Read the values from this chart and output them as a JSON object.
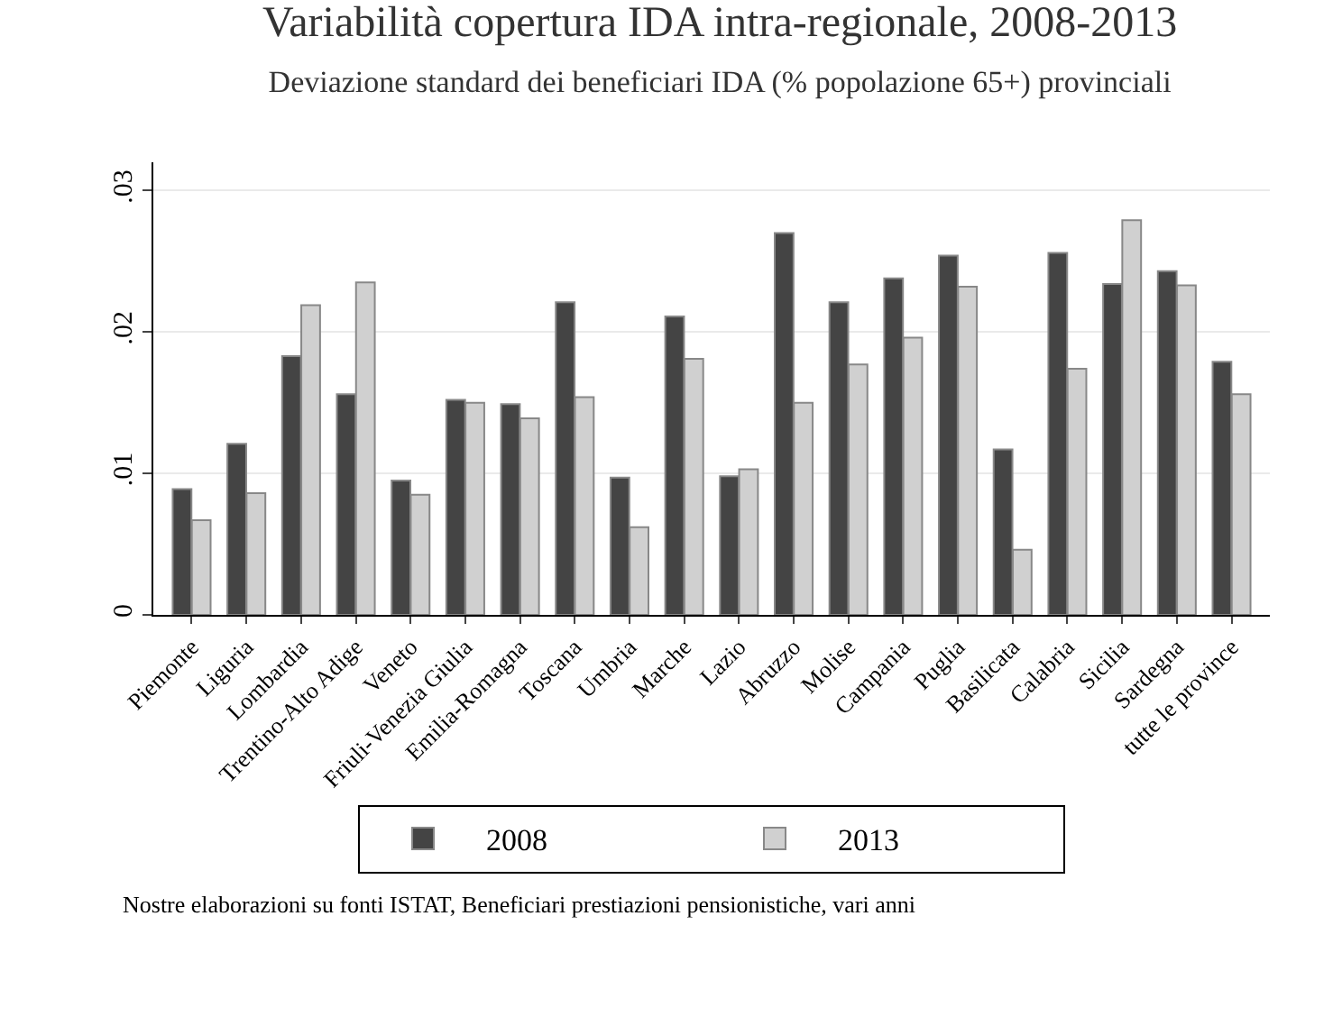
{
  "chart_data": {
    "type": "bar",
    "title": "Variabilità copertura IDA intra-regionale, 2008-2013",
    "subtitle": "Deviazione standard dei beneficiari IDA (% popolazione 65+) provinciali",
    "categories": [
      "Piemonte",
      "Liguria",
      "Lombardia",
      "Trentino-Alto Adige",
      "Veneto",
      "Friuli-Venezia Giulia",
      "Emilia-Romagna",
      "Toscana",
      "Umbria",
      "Marche",
      "Lazio",
      "Abruzzo",
      "Molise",
      "Campania",
      "Puglia",
      "Basilicata",
      "Calabria",
      "Sicilia",
      "Sardegna",
      "tutte le province"
    ],
    "series": [
      {
        "name": "2008",
        "color": "#444444",
        "values": [
          0.0089,
          0.0121,
          0.0183,
          0.0156,
          0.0095,
          0.0152,
          0.0149,
          0.0221,
          0.0097,
          0.0211,
          0.0098,
          0.027,
          0.0221,
          0.0238,
          0.0254,
          0.0117,
          0.0256,
          0.0234,
          0.0243,
          0.0179
        ]
      },
      {
        "name": "2013",
        "color": "#d0d0d0",
        "values": [
          0.0067,
          0.0086,
          0.0219,
          0.0235,
          0.0085,
          0.015,
          0.0139,
          0.0154,
          0.0062,
          0.0181,
          0.0103,
          0.015,
          0.0177,
          0.0196,
          0.0232,
          0.0046,
          0.0174,
          0.0279,
          0.0233,
          0.0156
        ]
      }
    ],
    "ylim": [
      0,
      0.032
    ],
    "yticks": [
      {
        "value": 0,
        "label": "0"
      },
      {
        "value": 0.01,
        "label": ".01"
      },
      {
        "value": 0.02,
        "label": ".02"
      },
      {
        "value": 0.03,
        "label": ".03"
      }
    ],
    "grid": "y",
    "legend": "bottom",
    "annotations": [
      "Nostre elaborazioni su fonti ISTAT, Beneficiari prestiazioni pensionistiche, vari anni"
    ]
  }
}
